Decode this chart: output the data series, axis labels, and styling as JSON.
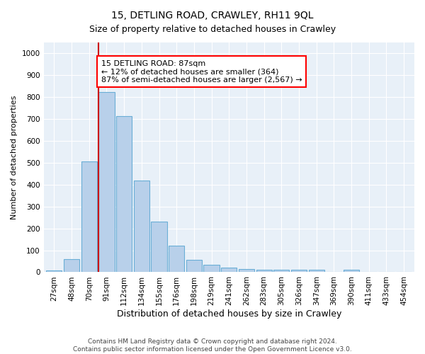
{
  "title": "15, DETLING ROAD, CRAWLEY, RH11 9QL",
  "subtitle": "Size of property relative to detached houses in Crawley",
  "xlabel": "Distribution of detached houses by size in Crawley",
  "ylabel": "Number of detached properties",
  "categories": [
    "27sqm",
    "48sqm",
    "70sqm",
    "91sqm",
    "112sqm",
    "134sqm",
    "155sqm",
    "176sqm",
    "198sqm",
    "219sqm",
    "241sqm",
    "262sqm",
    "283sqm",
    "305sqm",
    "326sqm",
    "347sqm",
    "369sqm",
    "390sqm",
    "411sqm",
    "433sqm",
    "454sqm"
  ],
  "values": [
    8,
    60,
    505,
    825,
    715,
    420,
    230,
    120,
    55,
    35,
    20,
    13,
    12,
    10,
    10,
    10,
    0,
    10,
    0,
    0,
    0
  ],
  "bar_color": "#b8d0ea",
  "bar_edge_color": "#6aaed6",
  "red_line_color": "#cc0000",
  "annotation_line1": "15 DETLING ROAD: 87sqm",
  "annotation_line2": "← 12% of detached houses are smaller (364)",
  "annotation_line3": "87% of semi-detached houses are larger (2,567) →",
  "annotation_box_color": "white",
  "annotation_box_edge_color": "red",
  "footnote1": "Contains HM Land Registry data © Crown copyright and database right 2024.",
  "footnote2": "Contains public sector information licensed under the Open Government Licence v3.0.",
  "ylim": [
    0,
    1050
  ],
  "yticks": [
    0,
    100,
    200,
    300,
    400,
    500,
    600,
    700,
    800,
    900,
    1000
  ],
  "bg_color": "#e8f0f8",
  "grid_color": "white",
  "title_fontsize": 10,
  "subtitle_fontsize": 9,
  "xlabel_fontsize": 9,
  "ylabel_fontsize": 8,
  "tick_fontsize": 7.5,
  "annotation_fontsize": 8,
  "footnote_fontsize": 6.5,
  "red_line_bar_index": 3,
  "bar_width": 0.9
}
